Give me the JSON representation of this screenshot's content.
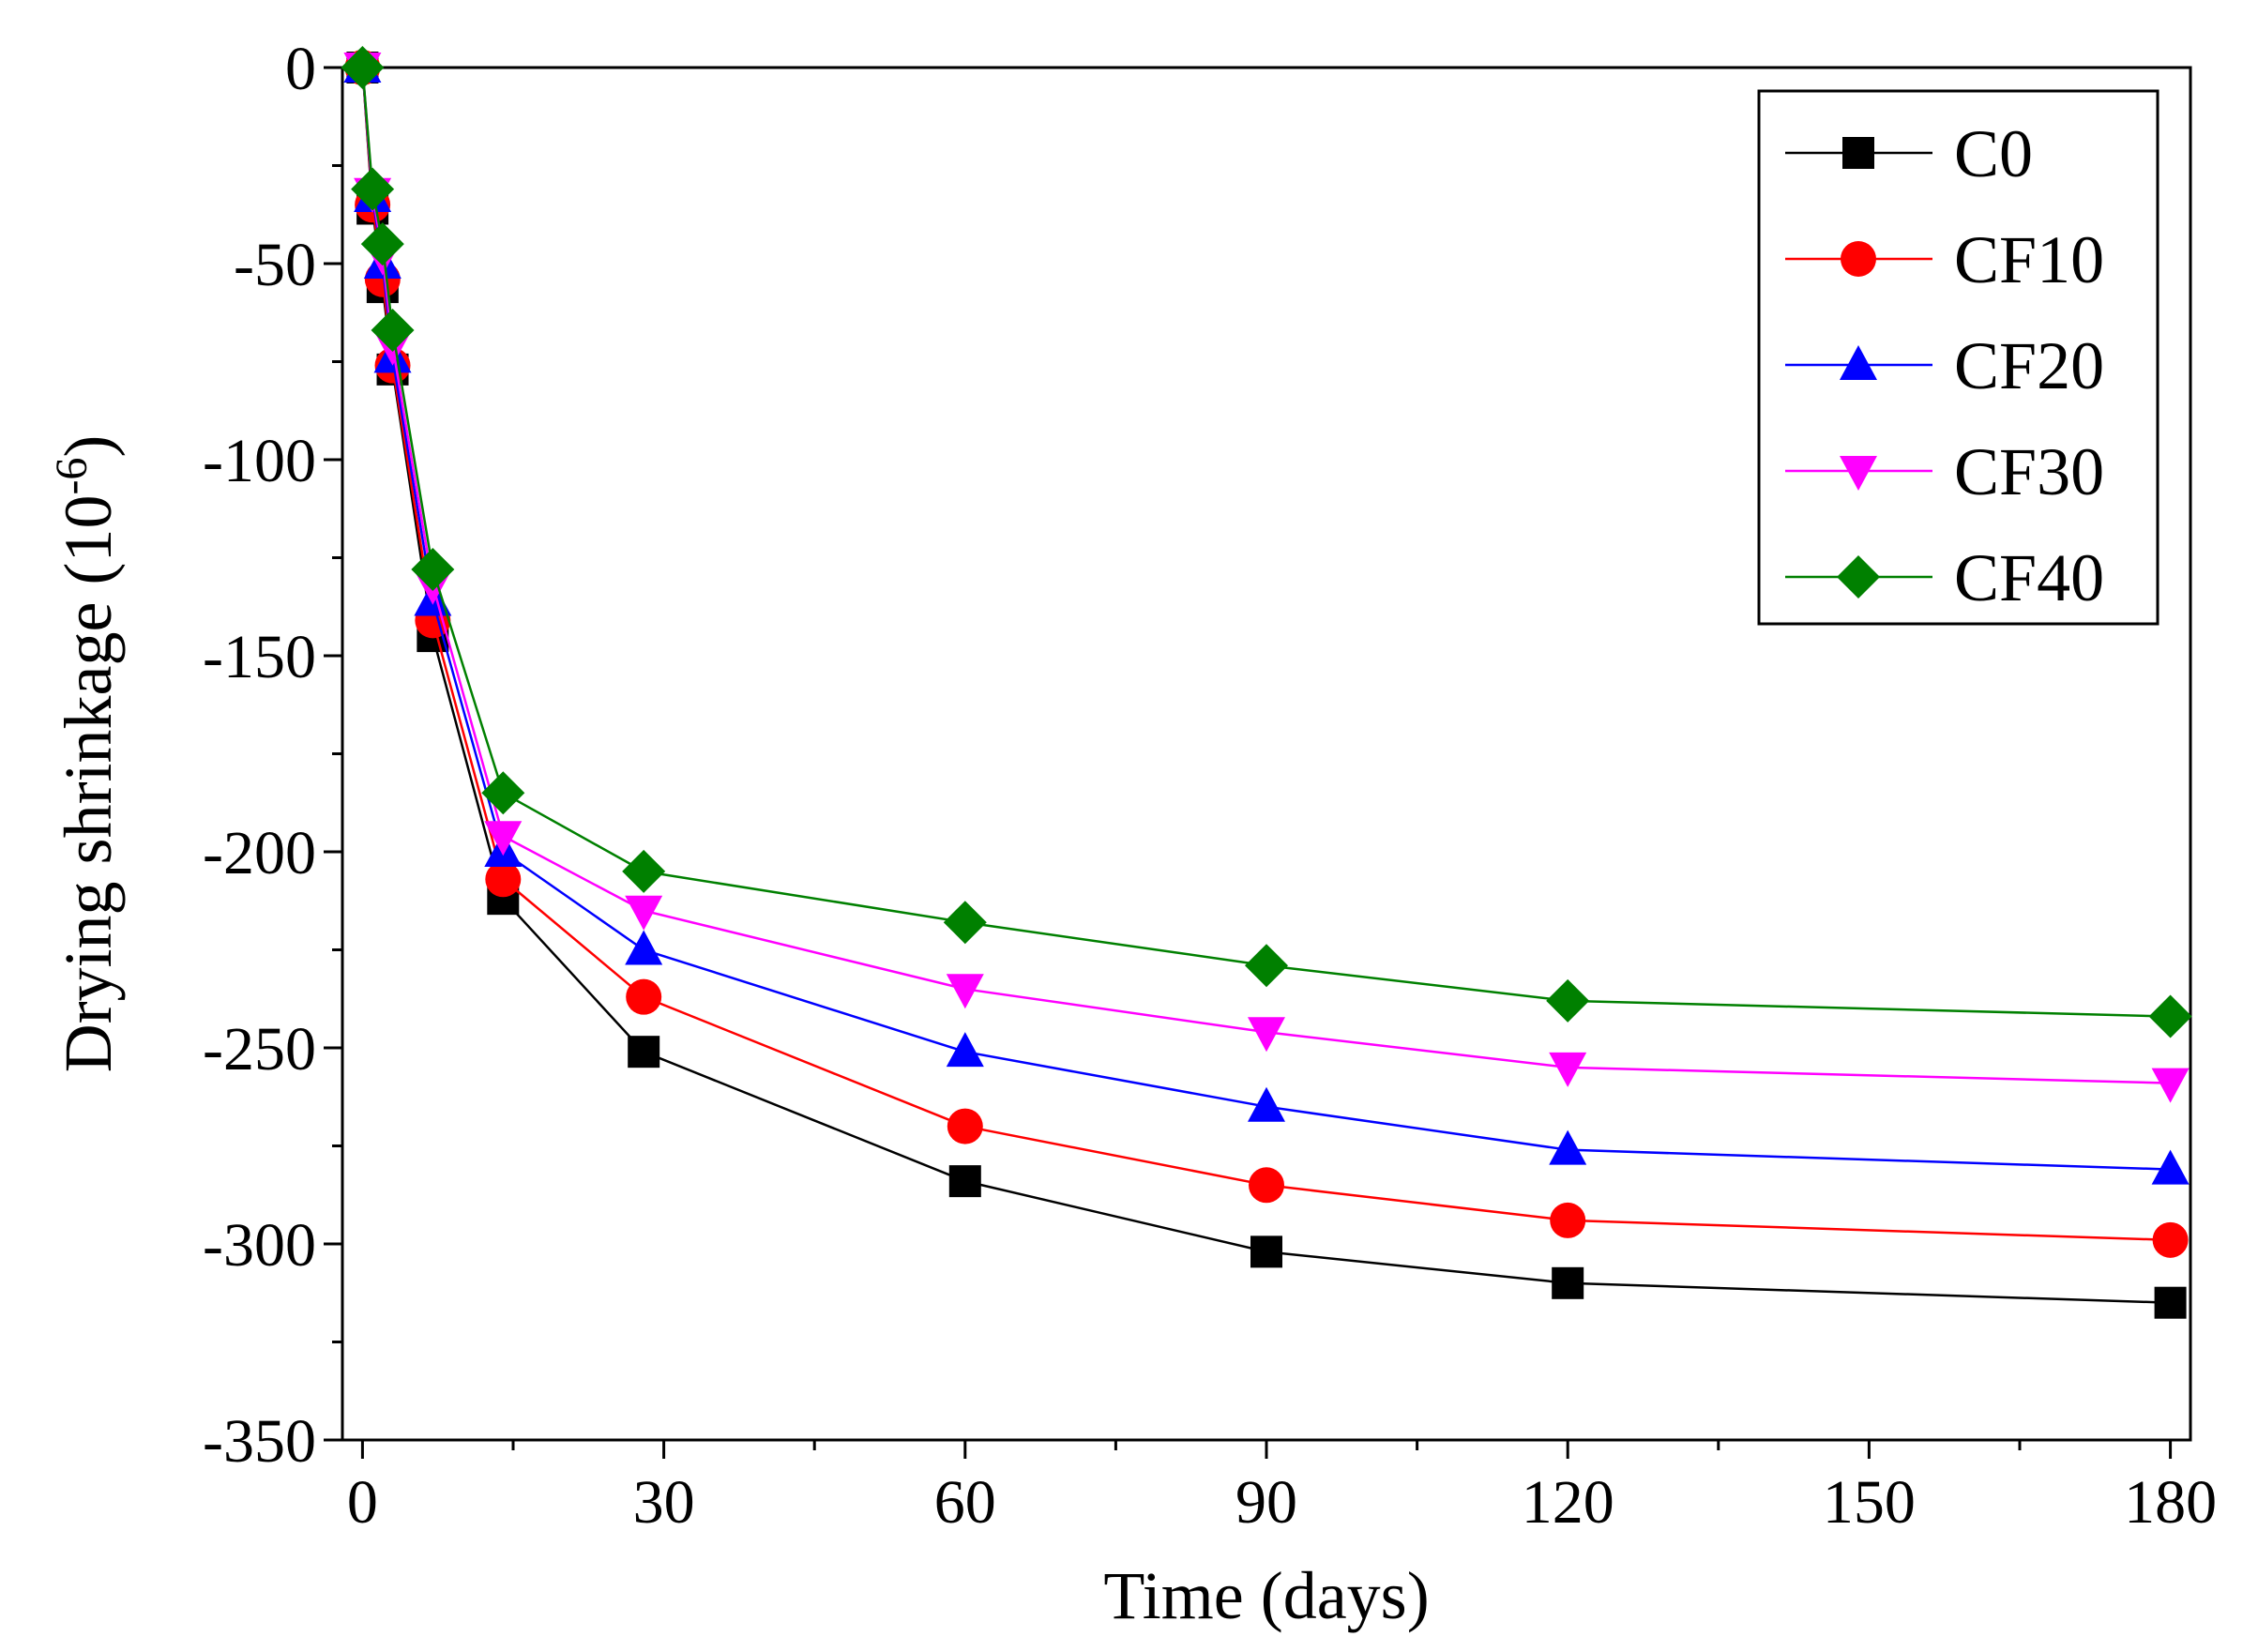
{
  "chart_data": {
    "type": "line",
    "title": "",
    "xlabel": "Time (days)",
    "ylabel_main": "Drying shrinkage (10",
    "ylabel_sup": "-6",
    "ylabel_close": ")",
    "xlim": [
      -2,
      182
    ],
    "ylim": [
      -350,
      0
    ],
    "x_ticks": [
      0,
      30,
      60,
      90,
      120,
      150,
      180
    ],
    "x_tick_labels": [
      "0",
      "30",
      "60",
      "90",
      "120",
      "150",
      "180"
    ],
    "y_ticks": [
      0,
      -50,
      -100,
      -150,
      -200,
      -250,
      -300,
      -350
    ],
    "y_tick_labels": [
      "0",
      "-50",
      "-100",
      "-150",
      "-200",
      "-250",
      "-300",
      "-350"
    ],
    "legend_position": "top-right",
    "grid": false,
    "x": [
      0,
      1,
      2,
      3,
      7,
      14,
      28,
      60,
      90,
      120,
      180
    ],
    "series": [
      {
        "name": "C0",
        "color": "#000000",
        "marker": "square",
        "values": [
          0,
          -36,
          -56,
          -77,
          -145,
          -212,
          -251,
          -284,
          -302,
          -310,
          -315
        ]
      },
      {
        "name": "CF10",
        "color": "#ff0000",
        "marker": "circle",
        "values": [
          0,
          -35,
          -54,
          -76,
          -141,
          -207,
          -237,
          -270,
          -285,
          -294,
          -299
        ]
      },
      {
        "name": "CF20",
        "color": "#0000ff",
        "marker": "triangle-up",
        "values": [
          0,
          -33,
          -50,
          -74,
          -136,
          -200,
          -225,
          -251,
          -265,
          -276,
          -281
        ]
      },
      {
        "name": "CF30",
        "color": "#ff00ff",
        "marker": "triangle-down",
        "values": [
          0,
          -32,
          -48,
          -71,
          -132,
          -196,
          -215,
          -235,
          -246,
          -255,
          -259
        ]
      },
      {
        "name": "CF40",
        "color": "#008000",
        "marker": "diamond",
        "values": [
          0,
          -31,
          -45,
          -67,
          -128,
          -185,
          -205,
          -218,
          -229,
          -238,
          -242
        ]
      }
    ]
  }
}
